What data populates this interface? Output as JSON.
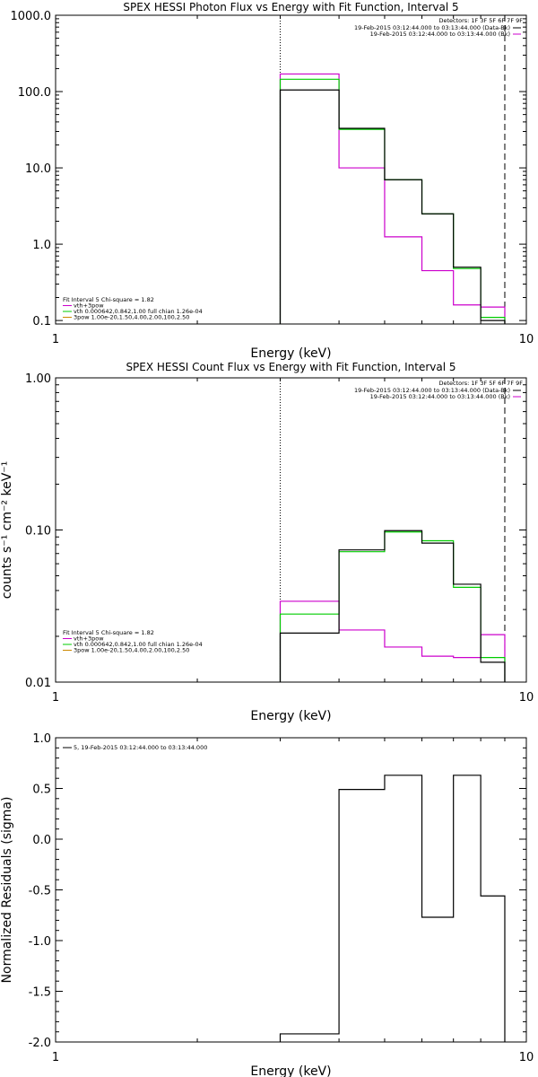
{
  "colors": {
    "data": "#000000",
    "bk": "#cc00cc",
    "fit": "#00cc00",
    "sub": "#cc8800"
  },
  "chart_data": [
    {
      "type": "line",
      "title": "SPEX HESSI Photon Flux vs Energy with Fit Function, Interval 5",
      "xlabel": "Energy (keV)",
      "ylabel": "",
      "xscale": "log",
      "yscale": "log",
      "xlim": [
        1,
        10
      ],
      "ylim": [
        0.09,
        1000
      ],
      "xticks": [
        1,
        10
      ],
      "xtick_labels": [
        "1",
        "10"
      ],
      "yticks": [
        0.1,
        1,
        10,
        100,
        1000
      ],
      "ytick_labels": [
        "0.1",
        "1.0",
        "10.0",
        "100.0",
        "1000.0"
      ],
      "vlines": {
        "dotted": 3.0,
        "dashed": 9.0
      },
      "bin_edges": [
        3.0,
        4.0,
        5.0,
        6.0,
        7.0,
        8.0,
        9.0
      ],
      "series": [
        {
          "key": "data",
          "values": [
            105,
            33,
            7.0,
            2.5,
            0.5,
            0.1
          ]
        },
        {
          "key": "fit",
          "values": [
            145,
            32,
            7.0,
            2.5,
            0.48,
            0.11
          ]
        },
        {
          "key": "bk",
          "values": [
            170,
            10,
            1.25,
            0.45,
            0.16,
            0.15
          ]
        }
      ],
      "detectors": "Detectors: 1F 3F 5F 6F 7F 9F",
      "legend_right": [
        "19-Feb-2015 03:12:44.000 to 03:13:44.000 (Data-Bk)",
        "19-Feb-2015 03:12:44.000 to 03:13:44.000 (Bk)"
      ],
      "legend_left": [
        "Fit Interval 5   Chi-square = 1.82",
        "vth+3pow",
        "vth 0.000642,0.842,1.00  full chian 1.26e-04",
        "3pow 1.00e-20,1.50,4.00,2.00,100,2.50"
      ]
    },
    {
      "type": "line",
      "title": "SPEX HESSI Count Flux vs Energy with Fit Function, Interval 5",
      "xlabel": "Energy (keV)",
      "ylabel": "counts s⁻¹ cm⁻² keV⁻¹",
      "xscale": "log",
      "yscale": "log",
      "xlim": [
        1,
        10
      ],
      "ylim": [
        0.01,
        1.0
      ],
      "xticks": [
        1,
        10
      ],
      "xtick_labels": [
        "1",
        "10"
      ],
      "yticks": [
        0.01,
        0.1,
        1.0
      ],
      "ytick_labels": [
        "0.01",
        "0.10",
        "1.00"
      ],
      "vlines": {
        "dotted": 3.0,
        "dashed": 9.0
      },
      "bin_edges": [
        3.0,
        4.0,
        5.0,
        6.0,
        7.0,
        8.0,
        9.0
      ],
      "series": [
        {
          "key": "data",
          "values": [
            0.021,
            0.074,
            0.099,
            0.082,
            0.044,
            0.0135
          ]
        },
        {
          "key": "fit",
          "values": [
            0.028,
            0.072,
            0.097,
            0.085,
            0.042,
            0.0145
          ]
        },
        {
          "key": "bk",
          "values": [
            0.034,
            0.022,
            0.017,
            0.0148,
            0.0145,
            0.0205
          ]
        }
      ],
      "detectors": "Detectors: 1F 3F 5F 6F 7F 9F",
      "legend_right": [
        "19-Feb-2015 03:12:44.000 to 03:13:44.000 (Data-Bk)",
        "19-Feb-2015 03:12:44.000 to 03:13:44.000 (Bk)"
      ],
      "legend_left": [
        "Fit Interval 5   Chi-square = 1.82",
        "vth+3pow",
        "vth 0.000642,0.842,1.00  full chian 1.26e-04",
        "3pow 1.00e-20,1.50,4.00,2.00,100,2.50"
      ]
    },
    {
      "type": "line",
      "title": "",
      "xlabel": "Energy (keV)",
      "ylabel": "Normalized Residuals (sigma)",
      "xscale": "log",
      "yscale": "linear",
      "xlim": [
        1,
        10
      ],
      "ylim": [
        -2.0,
        1.0
      ],
      "xticks": [
        1,
        10
      ],
      "xtick_labels": [
        "1",
        "10"
      ],
      "yticks": [
        -2.0,
        -1.5,
        -1.0,
        -0.5,
        0.0,
        0.5,
        1.0
      ],
      "ytick_labels": [
        "-2.0",
        "-1.5",
        "-1.0",
        "-0.5",
        "0.0",
        "0.5",
        "1.0"
      ],
      "bin_edges": [
        3.0,
        4.0,
        5.0,
        6.0,
        7.0,
        8.0,
        9.0
      ],
      "series": [
        {
          "key": "data",
          "values": [
            -1.92,
            0.49,
            0.63,
            -0.77,
            0.63,
            -0.56
          ]
        }
      ],
      "legend_left": [
        "5, 19-Feb-2015 03:12:44.000 to 03:13:44.000"
      ]
    }
  ]
}
